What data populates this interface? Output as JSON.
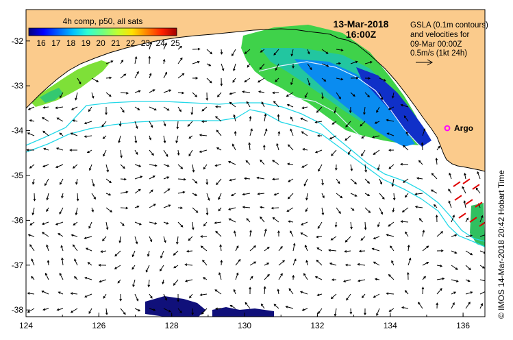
{
  "map": {
    "date_line1": "13-Mar-2018",
    "date_line2": "16:00Z",
    "colorbar": {
      "title": "4h comp, p50, all sats",
      "tick_labels": [
        "16",
        "17",
        "18",
        "19",
        "20",
        "21",
        "22",
        "23",
        "24",
        "25"
      ],
      "colors": [
        "#00007f",
        "#0000ff",
        "#0060ff",
        "#00c0ff",
        "#30ffd0",
        "#70ff80",
        "#c0ff30",
        "#ffe000",
        "#ff8000",
        "#ff2000",
        "#a00000"
      ]
    },
    "gsla_note": {
      "line1": "GSLA (0.1m contours)",
      "line2": "and velocities for",
      "line3": "09-Mar 00:00Z",
      "line4": "0.5m/s (1kt 24h)"
    },
    "argo_label": "Argo",
    "credit": "© IMOS 14-Mar-2018 20:42 Hobart Time",
    "x_ticks": [
      "124",
      "126",
      "128",
      "130",
      "132",
      "134",
      "136"
    ],
    "y_ticks": [
      "-32",
      "-33",
      "-34",
      "-35",
      "-36",
      "-37",
      "-38"
    ],
    "lon_range": [
      124,
      136.6
    ],
    "lat_range": [
      -38.15,
      -31.3
    ],
    "land_color": "#fbcb8c",
    "contour_color": "#22d8e8",
    "argo_color": "#ff00ff"
  }
}
